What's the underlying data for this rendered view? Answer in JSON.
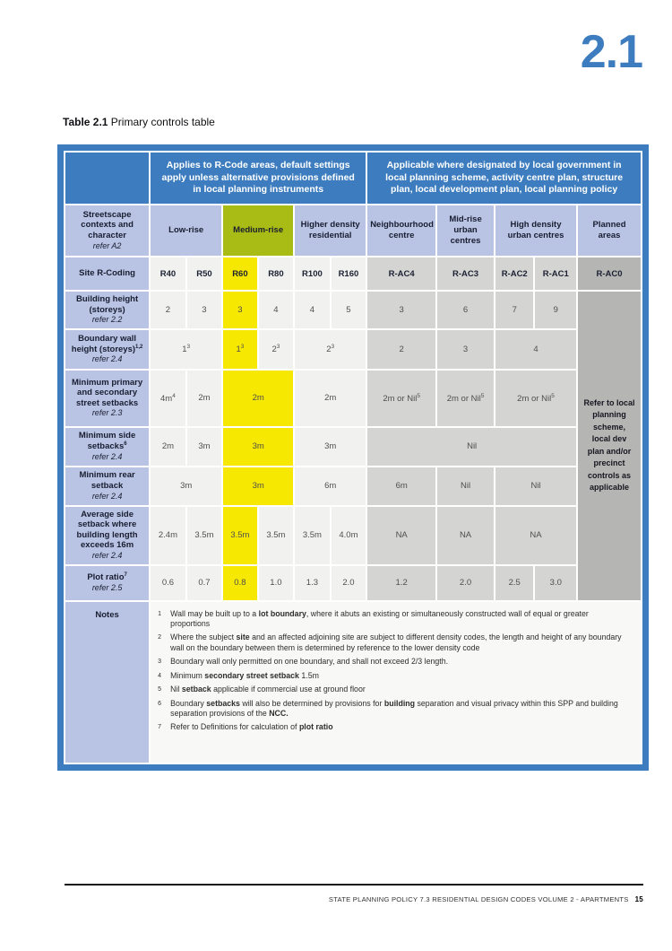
{
  "page": {
    "chapter_number": "2.1",
    "caption": {
      "bold": "Table 2.1",
      "rest": " Primary controls table"
    },
    "footer": {
      "text": "STATE PLANNING POLICY 7.3 RESIDENTIAL DESIGN CODES VOLUME 2 - APARTMENTS",
      "page_number": "15"
    }
  },
  "colors": {
    "header_blue": "#3d7dbf",
    "label_light_blue": "#b9c4e4",
    "medium_rise_olive": "#a9bb15",
    "highlight_yellow": "#f6e800",
    "rcode_cell_gray": "#f1f1ef",
    "activity_cell_gray": "#d4d4d2",
    "rac0_dark_gray": "#b5b5b3",
    "notes_background": "#f8f8f6"
  },
  "table": {
    "header_rows": [
      {
        "name": "header-row-groups",
        "cells": [
          {
            "cls": "c-blue",
            "name": "corner-cell",
            "text": ""
          },
          {
            "cls": "c-blue",
            "name": "rcode-group-header",
            "colspan": 6,
            "text": "Applies to R-Code areas, default settings apply unless alternative provisions defined in local planning instruments"
          },
          {
            "cls": "c-blue",
            "name": "local-government-group-header",
            "colspan": 5,
            "text": "Applicable where designated by local government in local planning scheme, activity centre plan, structure plan, local development plan, local planning policy"
          }
        ]
      },
      {
        "name": "header-row-contexts",
        "cells": [
          {
            "cls": "c-lb lbl",
            "name": "streetscape-contexts-header",
            "bold": "Streetscape contexts and character",
            "italic": "refer A2"
          },
          {
            "cls": "c-lb ctx",
            "name": "context-low-rise",
            "colspan": 2,
            "bold": "Low-rise"
          },
          {
            "cls": "c-ol ctx",
            "name": "context-medium-rise",
            "colspan": 2,
            "bold": "Medium-rise"
          },
          {
            "cls": "c-lb ctx",
            "name": "context-higher-density-residential",
            "colspan": 2,
            "bold": "Higher density residential"
          },
          {
            "cls": "c-lb ctx",
            "name": "context-neighbourhood-centre",
            "bold": "Neighbourhood centre"
          },
          {
            "cls": "c-lb ctx",
            "name": "context-mid-rise-urban-centres",
            "bold": "Mid-rise urban centres"
          },
          {
            "cls": "c-lb ctx",
            "name": "context-high-density-urban-centres",
            "colspan": 2,
            "bold": "High density urban centres"
          },
          {
            "cls": "c-lb ctx",
            "name": "context-planned-areas",
            "bold": "Planned areas"
          }
        ]
      }
    ],
    "rows": [
      {
        "name": "row-site-r-coding",
        "cells": [
          {
            "cls": "c-lb lbl",
            "name": "row-label-site-r-coding",
            "bold": "Site R-Coding"
          },
          {
            "cls": "c-lg data bd",
            "text": "R40"
          },
          {
            "cls": "c-lg data bd",
            "text": "R50"
          },
          {
            "cls": "c-yl data bd",
            "text": "R60"
          },
          {
            "cls": "c-lg data bd",
            "text": "R80"
          },
          {
            "cls": "c-lg data bd",
            "text": "R100"
          },
          {
            "cls": "c-lg data bd",
            "text": "R160"
          },
          {
            "cls": "c-mg data bd",
            "text": "R-AC4"
          },
          {
            "cls": "c-mg data bd",
            "text": "R-AC3"
          },
          {
            "cls": "c-mg data bd",
            "text": "R-AC2"
          },
          {
            "cls": "c-mg data bd",
            "text": "R-AC1"
          },
          {
            "cls": "c-dg data bd",
            "text": "R-AC0"
          }
        ]
      },
      {
        "name": "row-building-height",
        "cells": [
          {
            "cls": "c-lb lbl",
            "name": "row-label-building-height",
            "bold": "Building height (storeys)",
            "italic": "refer 2.2"
          },
          {
            "cls": "c-lg data",
            "text": "2"
          },
          {
            "cls": "c-lg data",
            "text": "3"
          },
          {
            "cls": "c-yl data",
            "text": "3"
          },
          {
            "cls": "c-lg data",
            "text": "4"
          },
          {
            "cls": "c-lg data",
            "text": "4"
          },
          {
            "cls": "c-lg data",
            "text": "5"
          },
          {
            "cls": "c-mg data",
            "text": "3"
          },
          {
            "cls": "c-mg data",
            "text": "6"
          },
          {
            "cls": "c-mg data",
            "text": "7"
          },
          {
            "cls": "c-mg data",
            "text": "9"
          },
          {
            "cls": "c-dg refer",
            "name": "rac0-refer-note",
            "rowspan": 7,
            "text": "Refer to local planning scheme, local dev plan and/or precinct controls as applicable"
          }
        ]
      },
      {
        "name": "row-boundary-wall-height",
        "cells": [
          {
            "cls": "c-lb lbl",
            "name": "row-label-boundary-wall-height",
            "bold": "Boundary wall height (storeys)",
            "sup": "1,2",
            "italic": "refer 2.4"
          },
          {
            "cls": "c-lg data",
            "colspan": 2,
            "text": "1",
            "sup": "3"
          },
          {
            "cls": "c-yl data",
            "text": "1",
            "sup": "3"
          },
          {
            "cls": "c-lg data",
            "text": "2",
            "sup": "3"
          },
          {
            "cls": "c-lg data",
            "colspan": 2,
            "text": "2",
            "sup": "3"
          },
          {
            "cls": "c-mg data",
            "text": "2"
          },
          {
            "cls": "c-mg data",
            "text": "3"
          },
          {
            "cls": "c-mg data",
            "colspan": 2,
            "text": "4"
          }
        ]
      },
      {
        "name": "row-min-primary-secondary-street-setbacks",
        "cells": [
          {
            "cls": "c-lb lbl",
            "name": "row-label-min-street-setbacks",
            "bold": "Minimum primary and secondary street setbacks",
            "italic": "refer 2.3"
          },
          {
            "cls": "c-lg data",
            "text": "4m",
            "sup": "4"
          },
          {
            "cls": "c-lg data",
            "text": "2m"
          },
          {
            "cls": "c-yl data",
            "colspan": 2,
            "text": "2m"
          },
          {
            "cls": "c-lg data",
            "colspan": 2,
            "text": "2m"
          },
          {
            "cls": "c-mg data",
            "text": "2m or Nil",
            "sup": "5"
          },
          {
            "cls": "c-mg data",
            "text": "2m or Nil",
            "sup": "5"
          },
          {
            "cls": "c-mg data",
            "colspan": 2,
            "text": "2m or Nil",
            "sup": "5"
          }
        ]
      },
      {
        "name": "row-min-side-setbacks",
        "cells": [
          {
            "cls": "c-lb lbl",
            "name": "row-label-min-side-setbacks",
            "bold": "Minimum side setbacks",
            "sup": "6",
            "italic": "refer 2.4"
          },
          {
            "cls": "c-lg data",
            "text": "2m"
          },
          {
            "cls": "c-lg data",
            "text": "3m"
          },
          {
            "cls": "c-yl data",
            "colspan": 2,
            "text": "3m"
          },
          {
            "cls": "c-lg data",
            "colspan": 2,
            "text": "3m"
          },
          {
            "cls": "c-mg data",
            "colspan": 4,
            "text": "Nil"
          }
        ]
      },
      {
        "name": "row-min-rear-setback",
        "cells": [
          {
            "cls": "c-lb lbl",
            "name": "row-label-min-rear-setback",
            "bold": "Minimum rear setback",
            "italic": "refer 2.4"
          },
          {
            "cls": "c-lg data",
            "colspan": 2,
            "text": "3m"
          },
          {
            "cls": "c-yl data",
            "colspan": 2,
            "text": "3m"
          },
          {
            "cls": "c-lg data",
            "colspan": 2,
            "text": "6m"
          },
          {
            "cls": "c-mg data",
            "text": "6m"
          },
          {
            "cls": "c-mg data",
            "text": "Nil"
          },
          {
            "cls": "c-mg data",
            "colspan": 2,
            "text": "Nil"
          }
        ]
      },
      {
        "name": "row-average-side-setback",
        "cells": [
          {
            "cls": "c-lb lbl",
            "name": "row-label-average-side-setback",
            "bold": "Average side setback where building length exceeds 16m",
            "italic": "refer 2.4"
          },
          {
            "cls": "c-lg data",
            "text": "2.4m"
          },
          {
            "cls": "c-lg data",
            "text": "3.5m"
          },
          {
            "cls": "c-yl data",
            "text": "3.5m"
          },
          {
            "cls": "c-lg data",
            "text": "3.5m"
          },
          {
            "cls": "c-lg data",
            "text": "3.5m"
          },
          {
            "cls": "c-lg data",
            "text": "4.0m"
          },
          {
            "cls": "c-mg data",
            "text": "NA"
          },
          {
            "cls": "c-mg data",
            "text": "NA"
          },
          {
            "cls": "c-mg data",
            "colspan": 2,
            "text": "NA"
          }
        ]
      },
      {
        "name": "row-plot-ratio",
        "cells": [
          {
            "cls": "c-lb lbl",
            "name": "row-label-plot-ratio",
            "bold": "Plot ratio",
            "sup": "7",
            "italic": "refer 2.5"
          },
          {
            "cls": "c-lg data",
            "text": "0.6"
          },
          {
            "cls": "c-lg data",
            "text": "0.7"
          },
          {
            "cls": "c-yl data",
            "text": "0.8"
          },
          {
            "cls": "c-lg data",
            "text": "1.0"
          },
          {
            "cls": "c-lg data",
            "text": "1.3"
          },
          {
            "cls": "c-lg data",
            "text": "2.0"
          },
          {
            "cls": "c-mg data",
            "text": "1.2"
          },
          {
            "cls": "c-mg data",
            "text": "2.0"
          },
          {
            "cls": "c-mg data",
            "text": "2.5"
          },
          {
            "cls": "c-mg data",
            "text": "3.0"
          }
        ]
      },
      {
        "name": "row-notes",
        "cells": [
          {
            "cls": "c-lb lbl notes-label",
            "name": "row-label-notes",
            "bold": "Notes"
          },
          {
            "cls": "notes-cell",
            "name": "notes-content",
            "colspan": 11,
            "notes": [
              {
                "sup": "1",
                "parts": [
                  {
                    "t": "Wall may be built up to a "
                  },
                  {
                    "t": "lot boundary",
                    "b": true
                  },
                  {
                    "t": ", where it abuts an existing or simultaneously constructed wall of equal or greater proportions"
                  }
                ]
              },
              {
                "sup": "2",
                "parts": [
                  {
                    "t": "Where the subject "
                  },
                  {
                    "t": "site",
                    "b": true
                  },
                  {
                    "t": " and an affected adjoining site are subject to different density codes, the length and height of any boundary wall on the boundary between them is determined by reference to the lower density code"
                  }
                ]
              },
              {
                "sup": "3",
                "parts": [
                  {
                    "t": "Boundary wall only permitted on one boundary, and shall not exceed 2/3 length."
                  }
                ]
              },
              {
                "sup": "4",
                "parts": [
                  {
                    "t": "Minimum "
                  },
                  {
                    "t": "secondary street setback",
                    "b": true
                  },
                  {
                    "t": " 1.5m"
                  }
                ]
              },
              {
                "sup": "5",
                "parts": [
                  {
                    "t": "Nil "
                  },
                  {
                    "t": "setback",
                    "b": true
                  },
                  {
                    "t": " applicable if commercial use at ground floor"
                  }
                ]
              },
              {
                "sup": "6",
                "parts": [
                  {
                    "t": "Boundary "
                  },
                  {
                    "t": "setbacks",
                    "b": true
                  },
                  {
                    "t": " will also be determined by provisions for "
                  },
                  {
                    "t": "building",
                    "b": true
                  },
                  {
                    "t": " separation and visual privacy within this SPP and building separation provisions of the "
                  },
                  {
                    "t": "NCC.",
                    "b": true
                  }
                ]
              },
              {
                "sup": "7",
                "parts": [
                  {
                    "t": "Refer to Definitions for calculation of "
                  },
                  {
                    "t": "plot ratio",
                    "b": true
                  }
                ]
              }
            ]
          }
        ]
      }
    ]
  }
}
